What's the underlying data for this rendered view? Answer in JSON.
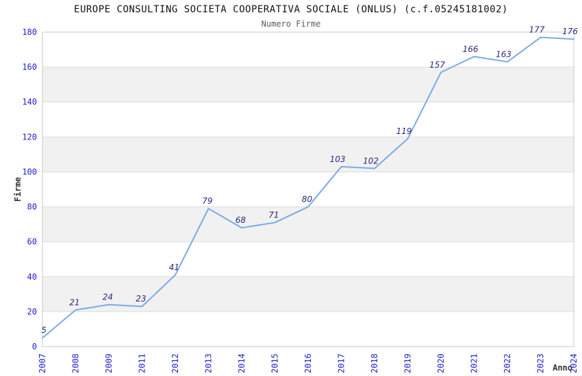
{
  "chart_data": {
    "type": "line",
    "title": "EUROPE CONSULTING SOCIETA COOPERATIVA SOCIALE (ONLUS) (c.f.05245181002)",
    "subtitle": "Numero Firme",
    "xlabel": "Anno",
    "ylabel": "Firme",
    "categories": [
      "2007",
      "2008",
      "2009",
      "2011",
      "2012",
      "2013",
      "2014",
      "2015",
      "2016",
      "2017",
      "2018",
      "2019",
      "2020",
      "2021",
      "2022",
      "2023",
      "2024"
    ],
    "values": [
      5,
      21,
      24,
      23,
      41,
      79,
      68,
      71,
      80,
      103,
      102,
      119,
      157,
      166,
      163,
      177,
      176
    ],
    "ylim": [
      0,
      180
    ],
    "ytick_step": 20,
    "grid": "horizontal",
    "band_style": "alternating-gray",
    "legend": "none",
    "colors": {
      "line": "#7AAAE6",
      "tick_label": "#2222CC",
      "data_label": "#28287D",
      "band": "#F1F1F1",
      "grid": "#DCDCDC",
      "border": "#C8C8C8",
      "title": "#111111",
      "subtitle": "#5A5A5A",
      "axis_label": "#333333",
      "background": "#FFFFFF"
    }
  }
}
